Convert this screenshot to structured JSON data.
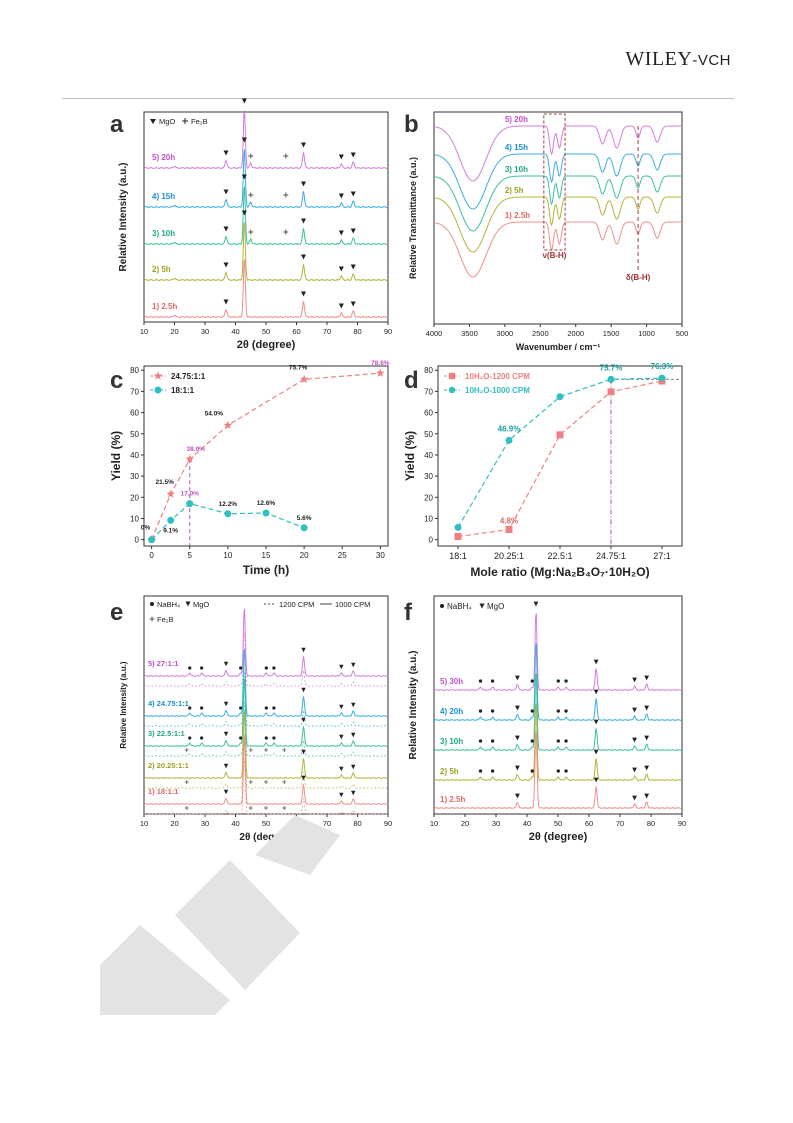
{
  "header": {
    "logo_wiley": "WILEY",
    "logo_sep": "-",
    "logo_vch": "VCH"
  },
  "chart_data": [
    {
      "panel": "a",
      "type": "line",
      "xlabel": "2θ (degree)",
      "ylabel": "Relative Intensity (a.u.)",
      "xlim": [
        10,
        90
      ],
      "xticks": [
        "10",
        "20",
        "30",
        "40",
        "50",
        "60",
        "70",
        "80",
        "90"
      ],
      "legend": [
        "MgO",
        "Fe₂B"
      ],
      "legend_position": "top-left",
      "mgo_peaks": [
        36.9,
        42.9,
        62.3,
        74.7,
        78.6
      ],
      "fe2b_peaks": [
        45.0,
        56.5
      ],
      "series": [
        {
          "name": "5) 20h",
          "color": "#d77cdb",
          "label_color": "#c050c8"
        },
        {
          "name": "4) 15h",
          "color": "#3aaee0",
          "label_color": "#1a8fd0"
        },
        {
          "name": "3) 10h",
          "color": "#3cc0a0",
          "label_color": "#1ea888"
        },
        {
          "name": "2) 5h",
          "color": "#b4b43a",
          "label_color": "#a0a020"
        },
        {
          "name": "1) 2.5h",
          "color": "#ee8f8a",
          "label_color": "#e06860"
        }
      ]
    },
    {
      "panel": "b",
      "type": "line",
      "xlabel": "Wavenumber / cm⁻¹",
      "ylabel": "Relative Transmittance (a.u.)",
      "xlim": [
        4000,
        500
      ],
      "xticks": [
        "4000",
        "3500",
        "3000",
        "2500",
        "2000",
        "1500",
        "1000",
        "500"
      ],
      "annotations": [
        "ν(B-H)",
        "δ(B-H)"
      ],
      "series": [
        {
          "name": "5) 20h",
          "color": "#d77cdb",
          "label_color": "#c050c8"
        },
        {
          "name": "4) 15h",
          "color": "#3aaee0",
          "label_color": "#1a8fd0"
        },
        {
          "name": "3) 10h",
          "color": "#3cc0a0",
          "label_color": "#1ea888"
        },
        {
          "name": "2) 5h",
          "color": "#b4b43a",
          "label_color": "#a0a020"
        },
        {
          "name": "1) 2.5h",
          "color": "#ee8f8a",
          "label_color": "#e06860"
        }
      ]
    },
    {
      "panel": "c",
      "type": "line",
      "xlabel": "Time (h)",
      "ylabel": "Yield (%)",
      "xlim": [
        -1,
        31
      ],
      "ylim": [
        -3,
        82
      ],
      "xticks": [
        0,
        5,
        10,
        15,
        20,
        25,
        30
      ],
      "yticks": [
        0,
        10,
        20,
        30,
        40,
        50,
        60,
        70,
        80
      ],
      "series": [
        {
          "name": "24.75:1:1",
          "color": "#f08080",
          "marker": "star",
          "x": [
            0,
            2.5,
            5,
            10,
            20,
            30
          ],
          "y": [
            0,
            21.5,
            38.0,
            54.0,
            75.7,
            78.6
          ],
          "labels": [
            "0%",
            "21.5%",
            "38.0%",
            "54.0%",
            "75.7%",
            "78.6%"
          ]
        },
        {
          "name": "18:1:1",
          "color": "#2fbfbf",
          "marker": "circle",
          "x": [
            0,
            2.5,
            5,
            10,
            15,
            20
          ],
          "y": [
            0,
            9.1,
            17.0,
            12.2,
            12.6,
            5.6
          ],
          "labels": [
            "",
            "9.1%",
            "17.0%",
            "12.2%",
            "12.6%",
            "5.6%"
          ]
        }
      ]
    },
    {
      "panel": "d",
      "type": "line",
      "xlabel": "Mole ratio (Mg:Na₂B₄O₇·10H₂O)",
      "ylabel": "Yield (%)",
      "ylim": [
        -3,
        82
      ],
      "categories": [
        "18:1",
        "20.25:1",
        "22.5:1",
        "24.75:1",
        "27:1"
      ],
      "yticks": [
        0,
        10,
        20,
        30,
        40,
        50,
        60,
        70,
        80
      ],
      "series": [
        {
          "name": "10H₂O-1200 CPM",
          "color": "#f08080",
          "marker": "square",
          "values": [
            1.5,
            4.8,
            49.5,
            69.8,
            74.9
          ],
          "labels": [
            "",
            "4.8%",
            "",
            "",
            ""
          ]
        },
        {
          "name": "10H₂O-1000 CPM",
          "color": "#2fbfbf",
          "marker": "circle",
          "values": [
            5.8,
            46.9,
            67.5,
            75.7,
            76.3
          ],
          "labels": [
            "",
            "46.9%",
            "",
            "75.7%",
            "76.3%"
          ]
        }
      ]
    },
    {
      "panel": "e",
      "type": "line",
      "xlabel": "2θ (degree)",
      "ylabel": "Relative Intensity (a.u.)",
      "xlim": [
        10,
        90
      ],
      "xticks": [
        "10",
        "20",
        "30",
        "40",
        "50",
        "60",
        "70",
        "80",
        "90"
      ],
      "legend": [
        "NaBH₄",
        "MgO",
        "Fe₂B",
        "1200 CPM",
        "1000 CPM"
      ],
      "series": [
        {
          "name": "5) 27:1:1",
          "color": "#d77cdb",
          "label_color": "#c050c8"
        },
        {
          "name": "4) 24.75:1:1",
          "color": "#3aaee0",
          "label_color": "#1a8fd0"
        },
        {
          "name": "3) 22.5:1:1",
          "color": "#3cc0a0",
          "label_color": "#1ea888"
        },
        {
          "name": "2) 20.25:1:1",
          "color": "#b4b43a",
          "label_color": "#a0a020"
        },
        {
          "name": "1) 18:1:1",
          "color": "#ee8f8a",
          "label_color": "#e06860"
        }
      ]
    },
    {
      "panel": "f",
      "type": "line",
      "xlabel": "2θ (degree)",
      "ylabel": "Relative Intensity (a.u.)",
      "xlim": [
        10,
        90
      ],
      "xticks": [
        "10",
        "20",
        "30",
        "40",
        "50",
        "60",
        "70",
        "80",
        "90"
      ],
      "legend": [
        "NaBH₄",
        "MgO"
      ],
      "series": [
        {
          "name": "5) 30h",
          "color": "#d77cdb",
          "label_color": "#c050c8"
        },
        {
          "name": "4) 20h",
          "color": "#3aaee0",
          "label_color": "#1a8fd0"
        },
        {
          "name": "3) 10h",
          "color": "#3cc0a0",
          "label_color": "#1ea888"
        },
        {
          "name": "2) 5h",
          "color": "#b4b43a",
          "label_color": "#a0a020"
        },
        {
          "name": "1) 2.5h",
          "color": "#ee8f8a",
          "label_color": "#e06860"
        }
      ]
    }
  ]
}
